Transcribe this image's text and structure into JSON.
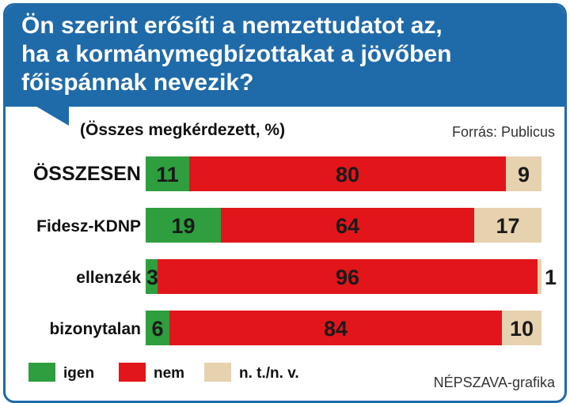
{
  "title": "Ön szerint erősíti a nemzettudatot az,\nha a kormánymegbízottakat a jövőben\nfőispánnak nevezik?",
  "subtitle": "(Összes megkérdezett, %)",
  "source": "Forrás: Publicus",
  "credit": "NÉPSZAVA-grafika",
  "colors": {
    "header": "#1f6aa9",
    "igen": "#2e9e3e",
    "nem": "#e2151b",
    "nt": "#e6d2ae"
  },
  "chart_data": {
    "type": "bar",
    "stacked": true,
    "orientation": "horizontal",
    "categories": [
      "ÖSSZESEN",
      "Fidesz-KDNP",
      "ellenzék",
      "bizonytalan"
    ],
    "series": [
      {
        "name": "igen",
        "values": [
          11,
          19,
          3,
          6
        ]
      },
      {
        "name": "nem",
        "values": [
          80,
          64,
          96,
          84
        ]
      },
      {
        "name": "n. t./n. v.",
        "values": [
          9,
          17,
          1,
          10
        ]
      }
    ],
    "xlim": [
      0,
      100
    ]
  }
}
